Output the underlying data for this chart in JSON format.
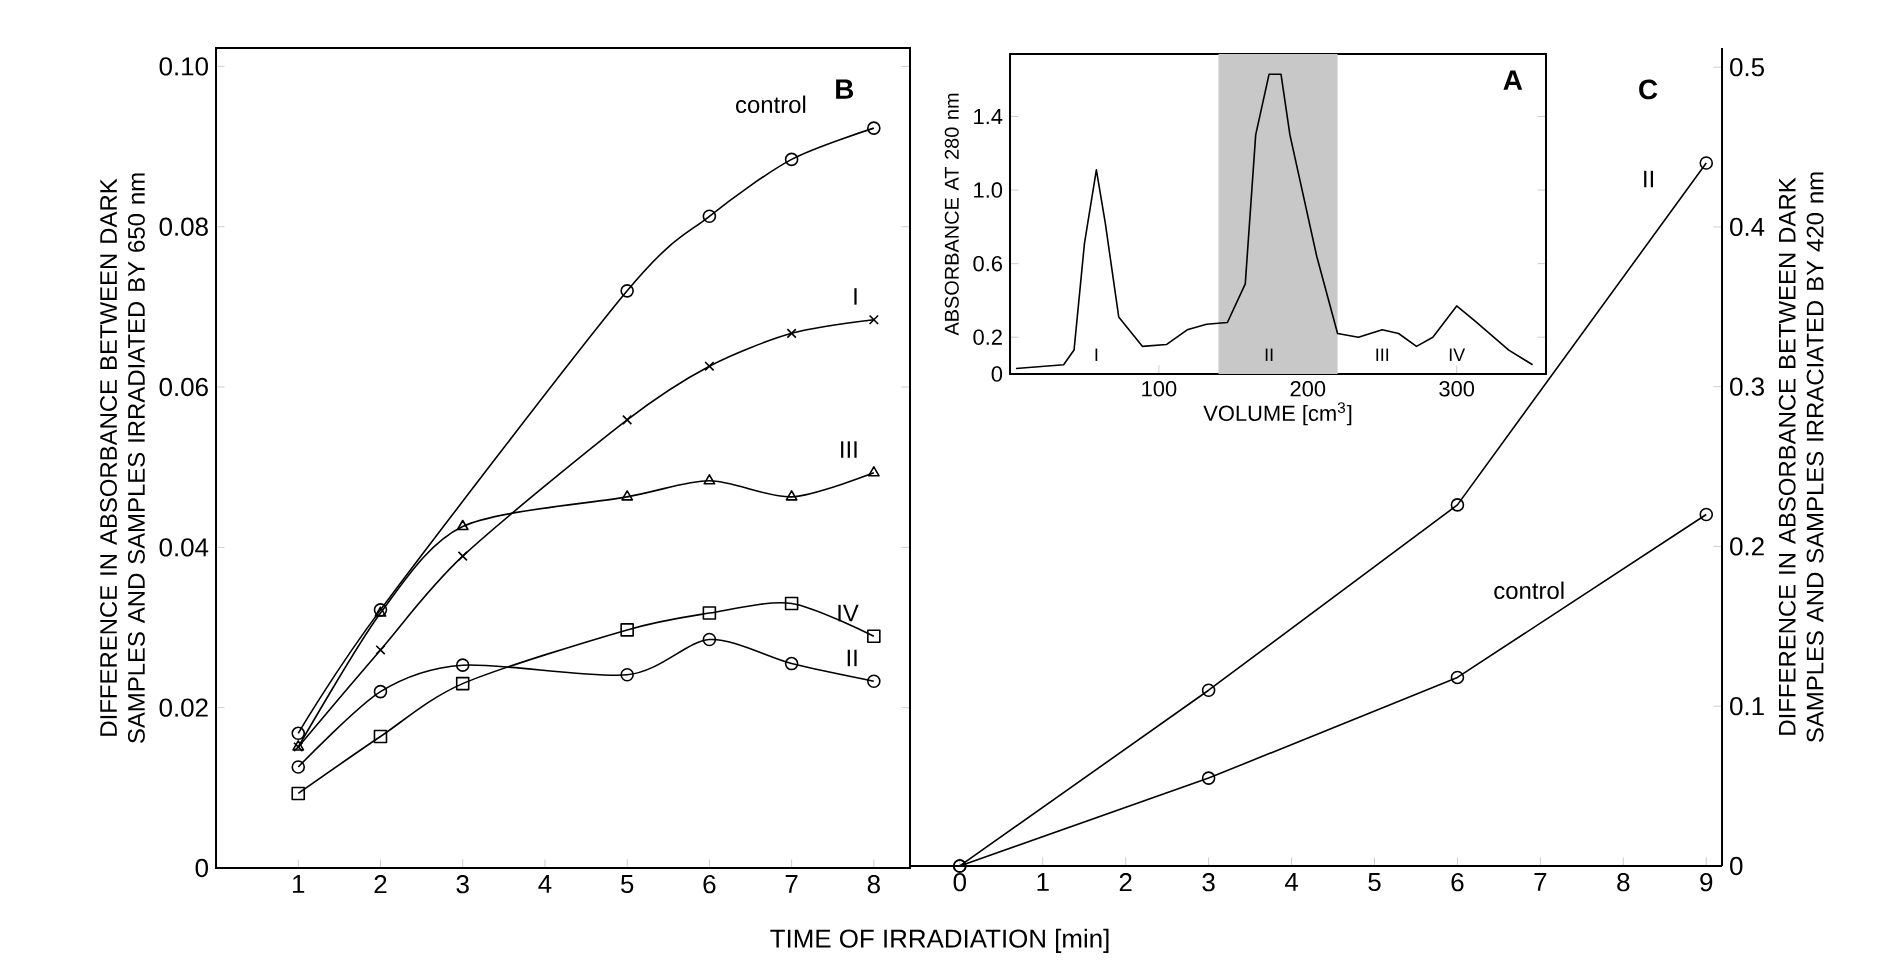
{
  "chart_data": [
    {
      "type": "line",
      "title": "B",
      "xlabel": "TIME OF IRRADIATION [min]",
      "ylabel": "DIFFERENCE IN ABSORBANCE BETWEEN DARK SAMPLES AND SAMPLES IRRADIATED BY 650 nm",
      "xlim": [
        0,
        8.44
      ],
      "ylim": [
        0,
        0.1023
      ],
      "xticks": [
        1,
        2,
        3,
        4,
        5,
        6,
        7,
        8
      ],
      "yticks": [
        0,
        0.02,
        0.04,
        0.06,
        0.08,
        {
          "value": 0.1,
          "label": "0.10"
        }
      ],
      "grid": false,
      "line_style": "solid",
      "series": [
        {
          "name": "control",
          "color": "#000000",
          "marker": "circle",
          "x": [
            1,
            2,
            5,
            6,
            7,
            8
          ],
          "values": [
            0.0168,
            0.0322,
            0.072,
            0.0813,
            0.0884,
            0.0923
          ]
        },
        {
          "name": "I",
          "color": "#000000",
          "marker": "cross",
          "x": [
            1,
            2,
            3,
            5,
            6,
            7,
            8
          ],
          "values": [
            0.0151,
            0.0272,
            0.0389,
            0.0559,
            0.0626,
            0.0667,
            0.0684
          ]
        },
        {
          "name": "III",
          "color": "#000000",
          "marker": "triangle",
          "x": [
            1,
            2,
            3,
            5,
            6,
            7,
            8
          ],
          "values": [
            0.0151,
            0.0318,
            0.0426,
            0.0463,
            0.0483,
            0.0463,
            0.0493
          ]
        },
        {
          "name": "IV",
          "color": "#000000",
          "marker": "square",
          "x": [
            1,
            2,
            3,
            5,
            6,
            7,
            8
          ],
          "values": [
            0.0093,
            0.0164,
            0.023,
            0.0297,
            0.0318,
            0.033,
            0.0289
          ]
        },
        {
          "name": "II",
          "color": "#000000",
          "marker": "circle",
          "x": [
            1,
            2,
            3,
            5,
            6,
            7,
            8
          ],
          "values": [
            0.0126,
            0.022,
            0.0253,
            0.0241,
            0.0285,
            0.0255,
            0.0233
          ]
        }
      ]
    },
    {
      "type": "line",
      "title": "C",
      "ylabel": "DIFFERENCE IN ABSORBANCE BETWEEN DARK SAMPLES AND SAMPLES IRRACIATED BY 420 nm",
      "xlim": [
        -0.6,
        9.19
      ],
      "ylim": [
        0,
        0.512
      ],
      "xticks": [
        0,
        1,
        2,
        3,
        4,
        5,
        6,
        7,
        8,
        9
      ],
      "yticks": [
        0,
        0.1,
        0.2,
        0.3,
        0.4,
        0.5
      ],
      "grid": false,
      "line_style": "solid",
      "series": [
        {
          "name": "II",
          "color": "#000000",
          "marker": "circle",
          "x": [
            0,
            3,
            6,
            9
          ],
          "values": [
            0,
            0.11,
            0.226,
            0.44
          ]
        },
        {
          "name": "control",
          "color": "#000000",
          "marker": "circle",
          "x": [
            0,
            3,
            6,
            9
          ],
          "values": [
            0,
            0.055,
            0.118,
            0.22
          ]
        }
      ]
    },
    {
      "type": "line",
      "title": "A",
      "xlabel": "VOLUME [cm$^{3}$]",
      "ylabel": "ABSORBANCE AT 280 nm",
      "xlim": [
        0,
        360
      ],
      "ylim": [
        0,
        1.74
      ],
      "xticks": [
        100,
        200,
        300
      ],
      "yticks": [
        0,
        0.2,
        0.6,
        {
          "value": 1.0,
          "label": "1.0"
        },
        1.4
      ],
      "grid": false,
      "marker": "none",
      "line_style": "solid",
      "bands": [
        {
          "axis": "x",
          "from": 140,
          "to": 220,
          "color": "#c8c8c8"
        }
      ],
      "annotations": [
        "I",
        "II",
        "III",
        "IV"
      ],
      "series": [
        {
          "color": "#000000",
          "x": [
            4,
            36,
            43,
            50,
            58,
            64,
            73,
            89,
            105,
            119,
            132,
            146,
            158,
            165,
            174,
            182,
            188,
            206,
            220,
            234,
            250,
            261,
            273,
            284,
            300,
            312,
            335,
            351
          ],
          "values": [
            0.03,
            0.05,
            0.13,
            0.71,
            1.11,
            0.82,
            0.31,
            0.15,
            0.16,
            0.24,
            0.27,
            0.28,
            0.49,
            1.3,
            1.63,
            1.63,
            1.3,
            0.64,
            0.22,
            0.2,
            0.24,
            0.22,
            0.15,
            0.2,
            0.37,
            0.29,
            0.13,
            0.05
          ]
        }
      ]
    }
  ]
}
